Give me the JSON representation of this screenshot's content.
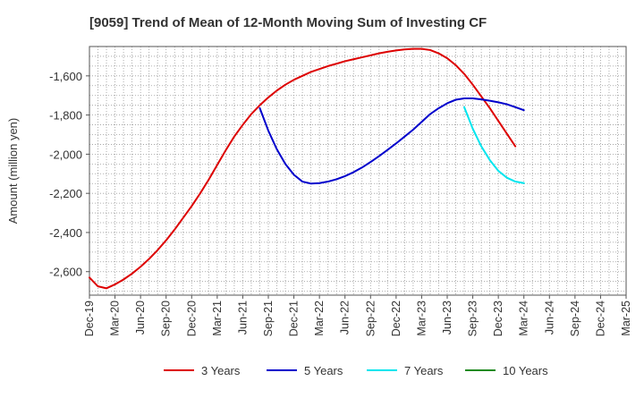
{
  "chart_data": {
    "type": "line",
    "title": "[9059]  Trend of Mean of 12-Month Moving Sum of Investing CF",
    "xlabel": "",
    "ylabel": "Amount (million yen)",
    "ylim": [
      -2720,
      -1450
    ],
    "yticks": [
      -2600,
      -2400,
      -2200,
      -2000,
      -1800,
      -1600
    ],
    "ytick_labels": [
      "-2,600",
      "-2,400",
      "-2,200",
      "-2,000",
      "-1,800",
      "-1,600"
    ],
    "x_range_months": [
      0,
      63
    ],
    "xticks": [
      {
        "m": 0,
        "label": "Dec-19"
      },
      {
        "m": 3,
        "label": "Mar-20"
      },
      {
        "m": 6,
        "label": "Jun-20"
      },
      {
        "m": 9,
        "label": "Sep-20"
      },
      {
        "m": 12,
        "label": "Dec-20"
      },
      {
        "m": 15,
        "label": "Mar-21"
      },
      {
        "m": 18,
        "label": "Jun-21"
      },
      {
        "m": 21,
        "label": "Sep-21"
      },
      {
        "m": 24,
        "label": "Dec-21"
      },
      {
        "m": 27,
        "label": "Mar-22"
      },
      {
        "m": 30,
        "label": "Jun-22"
      },
      {
        "m": 33,
        "label": "Sep-22"
      },
      {
        "m": 36,
        "label": "Dec-22"
      },
      {
        "m": 39,
        "label": "Mar-23"
      },
      {
        "m": 42,
        "label": "Jun-23"
      },
      {
        "m": 45,
        "label": "Sep-23"
      },
      {
        "m": 48,
        "label": "Dec-23"
      },
      {
        "m": 51,
        "label": "Mar-24"
      },
      {
        "m": 54,
        "label": "Jun-24"
      },
      {
        "m": 57,
        "label": "Sep-24"
      },
      {
        "m": 60,
        "label": "Dec-24"
      },
      {
        "m": 63,
        "label": "Mar-25"
      }
    ],
    "series": [
      {
        "name": "3 Years",
        "color": "#dd0000",
        "points": [
          [
            0,
            -2630
          ],
          [
            1,
            -2675
          ],
          [
            2,
            -2685
          ],
          [
            3,
            -2665
          ],
          [
            4,
            -2640
          ],
          [
            5,
            -2610
          ],
          [
            6,
            -2575
          ],
          [
            7,
            -2535
          ],
          [
            8,
            -2490
          ],
          [
            9,
            -2440
          ],
          [
            10,
            -2385
          ],
          [
            11,
            -2325
          ],
          [
            12,
            -2265
          ],
          [
            13,
            -2200
          ],
          [
            14,
            -2130
          ],
          [
            15,
            -2055
          ],
          [
            16,
            -1980
          ],
          [
            17,
            -1910
          ],
          [
            18,
            -1850
          ],
          [
            19,
            -1795
          ],
          [
            20,
            -1750
          ],
          [
            21,
            -1710
          ],
          [
            22,
            -1675
          ],
          [
            23,
            -1645
          ],
          [
            24,
            -1620
          ],
          [
            25,
            -1600
          ],
          [
            26,
            -1580
          ],
          [
            27,
            -1565
          ],
          [
            28,
            -1550
          ],
          [
            29,
            -1538
          ],
          [
            30,
            -1525
          ],
          [
            31,
            -1515
          ],
          [
            32,
            -1505
          ],
          [
            33,
            -1495
          ],
          [
            34,
            -1485
          ],
          [
            35,
            -1477
          ],
          [
            36,
            -1470
          ],
          [
            37,
            -1465
          ],
          [
            38,
            -1462
          ],
          [
            39,
            -1462
          ],
          [
            40,
            -1468
          ],
          [
            41,
            -1485
          ],
          [
            42,
            -1510
          ],
          [
            43,
            -1545
          ],
          [
            44,
            -1590
          ],
          [
            45,
            -1645
          ],
          [
            46,
            -1705
          ],
          [
            47,
            -1765
          ],
          [
            48,
            -1830
          ],
          [
            49,
            -1895
          ],
          [
            50,
            -1960
          ]
        ]
      },
      {
        "name": "5 Years",
        "color": "#0000cc",
        "points": [
          [
            20,
            -1765
          ],
          [
            21,
            -1880
          ],
          [
            22,
            -1975
          ],
          [
            23,
            -2050
          ],
          [
            24,
            -2105
          ],
          [
            25,
            -2140
          ],
          [
            26,
            -2150
          ],
          [
            27,
            -2148
          ],
          [
            28,
            -2140
          ],
          [
            29,
            -2128
          ],
          [
            30,
            -2112
          ],
          [
            31,
            -2092
          ],
          [
            32,
            -2068
          ],
          [
            33,
            -2040
          ],
          [
            34,
            -2010
          ],
          [
            35,
            -1978
          ],
          [
            36,
            -1945
          ],
          [
            37,
            -1910
          ],
          [
            38,
            -1875
          ],
          [
            39,
            -1835
          ],
          [
            40,
            -1795
          ],
          [
            41,
            -1765
          ],
          [
            42,
            -1740
          ],
          [
            43,
            -1722
          ],
          [
            44,
            -1715
          ],
          [
            45,
            -1715
          ],
          [
            46,
            -1720
          ],
          [
            47,
            -1727
          ],
          [
            48,
            -1735
          ],
          [
            49,
            -1745
          ],
          [
            50,
            -1760
          ],
          [
            51,
            -1775
          ]
        ]
      },
      {
        "name": "7 Years",
        "color": "#00e5ee",
        "points": [
          [
            44,
            -1760
          ],
          [
            45,
            -1870
          ],
          [
            46,
            -1960
          ],
          [
            47,
            -2030
          ],
          [
            48,
            -2085
          ],
          [
            49,
            -2120
          ],
          [
            50,
            -2140
          ],
          [
            51,
            -2148
          ]
        ]
      },
      {
        "name": "10 Years",
        "color": "#228b22",
        "points": []
      }
    ],
    "legend": [
      "3 Years",
      "5 Years",
      "7 Years",
      "10 Years"
    ],
    "legend_position": "bottom",
    "grid": true
  }
}
